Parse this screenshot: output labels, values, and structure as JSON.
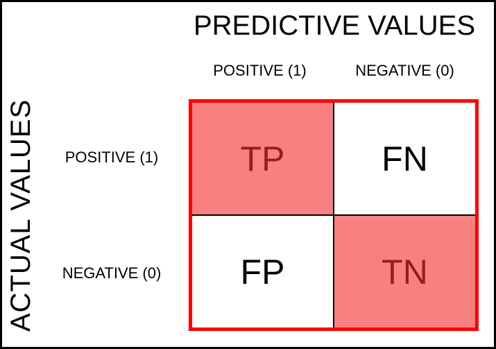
{
  "figure": {
    "predicted_axis_title": "PREDICTIVE VALUES",
    "actual_axis_title": "ACTUAL VALUES",
    "column_headers": [
      "POSITIVE (1)",
      "NEGATIVE (0)"
    ],
    "row_headers": [
      "POSITIVE (1)",
      "NEGATIVE (0)"
    ],
    "cells": {
      "true_positive": "TP",
      "false_negative": "FN",
      "false_positive": "FP",
      "true_negative": "TN"
    }
  },
  "colors": {
    "highlight_fill": "#F98080",
    "highlight_text": "#9E1B1B",
    "matrix_border": "#FF0000",
    "frame_border": "#000000",
    "text": "#000000"
  }
}
